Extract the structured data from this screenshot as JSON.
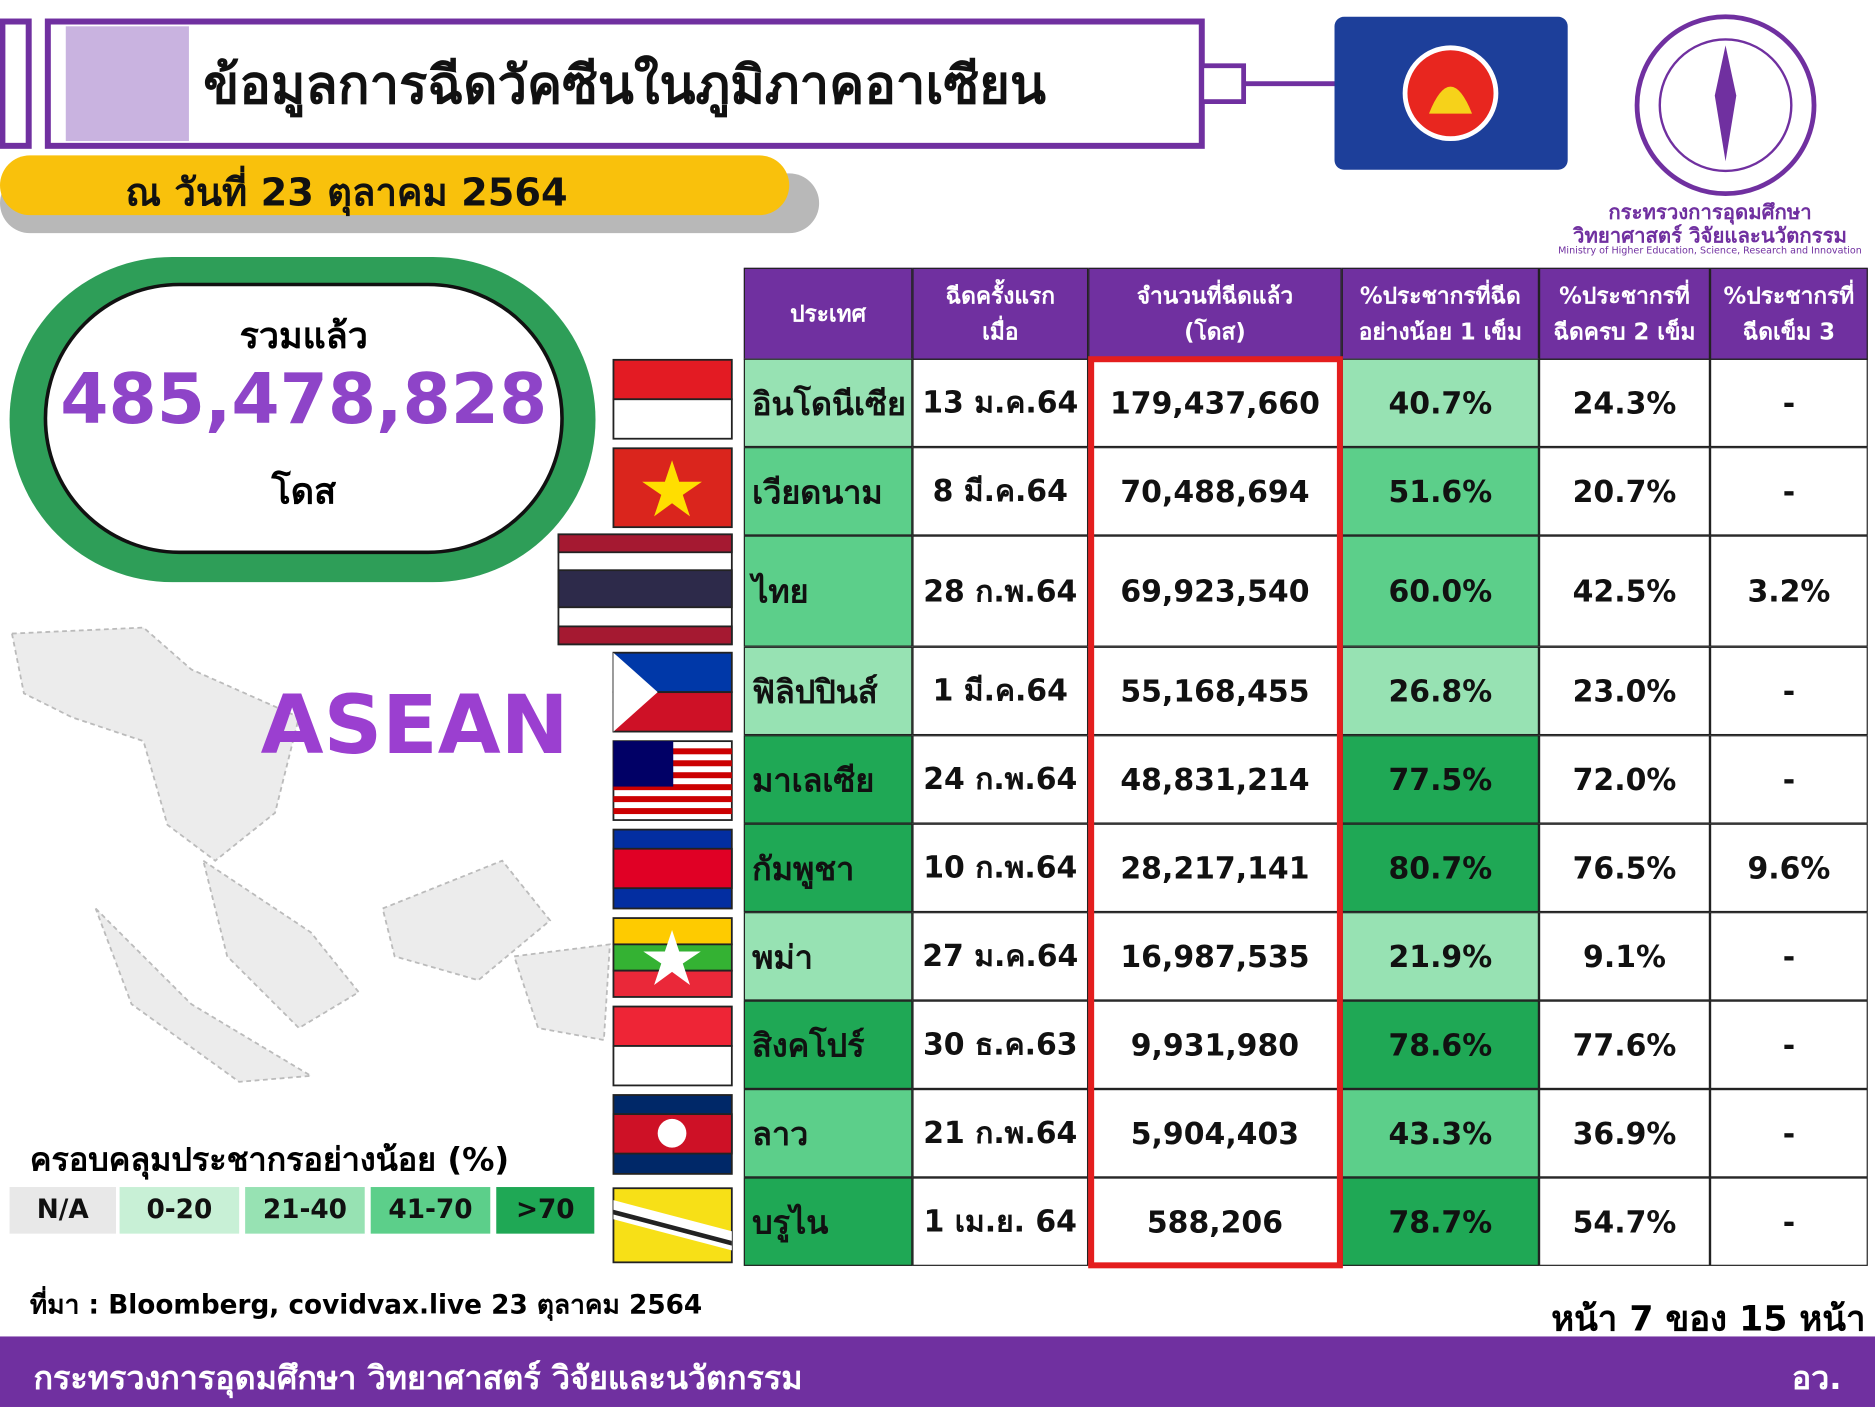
{
  "header": {
    "title": "ข้อมูลการฉีดวัคซีนในภูมิภาคอาเซียน",
    "date": "ณ วันที่ 23 ตุลาคม 2564"
  },
  "logo": {
    "line1": "กระทรวงการอุดมศึกษา",
    "line2": "วิทยาศาสตร์ วิจัยและนวัตกรรม",
    "line3": "Ministry of Higher Education, Science, Research and Innovation"
  },
  "total": {
    "label": "รวมแล้ว",
    "value": "485,478,828",
    "unit": "โดส"
  },
  "map_label": "ASEAN",
  "legend": {
    "title": "ครอบคลุมประชากรอย่างน้อย (%)",
    "items": [
      "N/A",
      "0-20",
      "21-40",
      "41-70",
      ">70"
    ]
  },
  "table": {
    "columns": [
      "ประเทศ",
      "ฉีดครั้งแรก\nเมื่อ",
      "จำนวนที่ฉีดแล้ว\n(โดส)",
      "%ประชากรที่ฉีด\nอย่างน้อย 1 เข็ม",
      "%ประชากรที่\nฉีดครบ 2 เข็ม",
      "%ประชากรที่\nฉีดเข็ม 3"
    ],
    "rows": [
      [
        "อินโดนีเซีย",
        "13 ม.ค.64",
        "179,437,660",
        "40.7%",
        "24.3%",
        "-"
      ],
      [
        "เวียดนาม",
        "8 มี.ค.64",
        "70,488,694",
        "51.6%",
        "20.7%",
        "-"
      ],
      [
        "ไทย",
        "28 ก.พ.64",
        "69,923,540",
        "60.0%",
        "42.5%",
        "3.2%"
      ],
      [
        "ฟิลิปปินส์",
        "1 มี.ค.64",
        "55,168,455",
        "26.8%",
        "23.0%",
        "-"
      ],
      [
        "มาเลเซีย",
        "24 ก.พ.64",
        "48,831,214",
        "77.5%",
        "72.0%",
        "-"
      ],
      [
        "กัมพูชา",
        "10 ก.พ.64",
        "28,217,141",
        "80.7%",
        "76.5%",
        "9.6%"
      ],
      [
        "พม่า",
        "27 ม.ค.64",
        "16,987,535",
        "21.9%",
        "9.1%",
        "-"
      ],
      [
        "สิงคโปร์",
        "30 ธ.ค.63",
        "9,931,980",
        "78.6%",
        "77.6%",
        "-"
      ],
      [
        "ลาว",
        "21 ก.พ.64",
        "5,904,403",
        "43.3%",
        "36.9%",
        "-"
      ],
      [
        "บรูไน",
        "1 เม.ย. 64",
        "588,206",
        "78.7%",
        "54.7%",
        "-"
      ]
    ]
  },
  "source": "ที่มา : Bloomberg, covidvax.live 23 ตุลาคม 2564",
  "page": "หน้า 7 ของ 15 หน้า",
  "footer": {
    "org": "กระทรวงการอุดมศึกษา วิทยาศาสตร์ วิจัยและนวัตกรรม",
    "abbr": "อว."
  }
}
